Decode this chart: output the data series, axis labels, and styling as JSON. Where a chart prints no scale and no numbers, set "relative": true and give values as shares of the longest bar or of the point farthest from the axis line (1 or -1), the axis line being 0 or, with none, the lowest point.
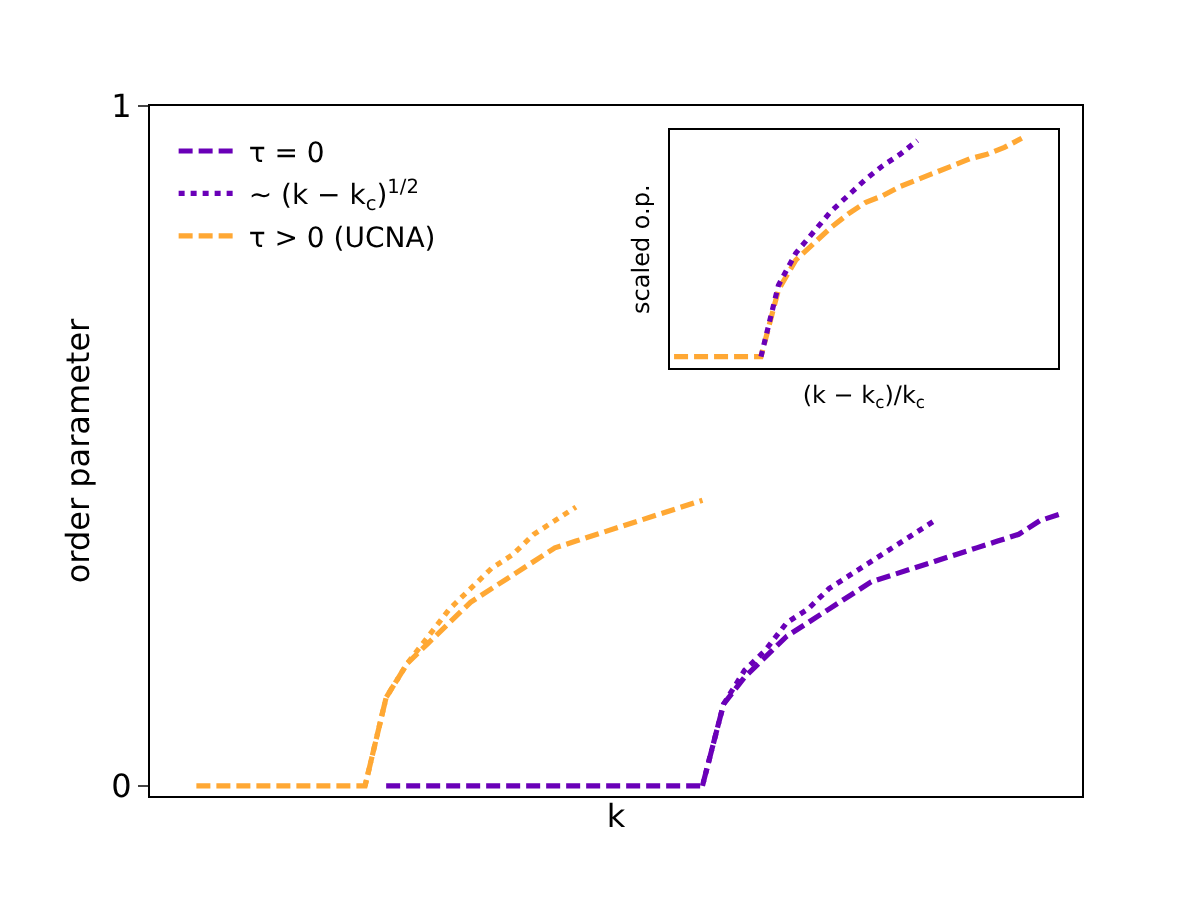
{
  "chart_data": [
    {
      "type": "line",
      "xlabel": "k",
      "ylabel": "order parameter",
      "categories": [
        null,
        null,
        null,
        null,
        null,
        null,
        null,
        null,
        null,
        null,
        null,
        null,
        null,
        null,
        null,
        null,
        null,
        null,
        null,
        null,
        null,
        null,
        null,
        null,
        null,
        null,
        null,
        null,
        null,
        null,
        null,
        null,
        null,
        null,
        null,
        null,
        null,
        null,
        null,
        null,
        null,
        null
      ],
      "series": [
        {
          "name": "τ = 0",
          "color": "#6a00b8",
          "line_style": "dashed",
          "values": [
            null,
            null,
            null,
            null,
            null,
            null,
            null,
            null,
            null,
            0,
            0,
            0,
            0,
            0,
            0,
            0,
            0,
            0,
            0,
            0,
            0,
            0,
            0,
            0,
            0,
            0.12,
            0.16,
            0.19,
            0.22,
            0.24,
            0.26,
            0.28,
            0.3,
            0.31,
            0.32,
            0.33,
            0.34,
            0.35,
            0.36,
            0.37,
            0.39,
            0.4
          ]
        },
        {
          "name": "~ (k − k$_{c}$)$^{1/2}$",
          "color": "#6a00b8",
          "line_style": "dotted",
          "values": [
            null,
            null,
            null,
            null,
            null,
            null,
            null,
            null,
            null,
            null,
            null,
            null,
            null,
            null,
            null,
            null,
            null,
            null,
            null,
            null,
            null,
            null,
            null,
            null,
            0,
            0.12,
            0.17,
            0.2,
            0.24,
            0.26,
            0.29,
            0.31,
            0.33,
            0.35,
            0.37,
            0.39,
            null,
            null,
            null,
            null,
            null,
            null
          ]
        },
        {
          "name": "τ > 0 (UCNA)",
          "color": "#ffa834",
          "line_style": "dashed",
          "values": [
            0,
            0,
            0,
            0,
            0,
            0,
            0,
            0,
            0,
            0.13,
            0.18,
            0.21,
            0.24,
            0.27,
            0.29,
            0.31,
            0.33,
            0.35,
            0.36,
            0.37,
            0.38,
            0.39,
            0.4,
            0.41,
            0.42,
            null,
            null,
            null,
            null,
            null,
            null,
            null,
            null,
            null,
            null,
            null,
            null,
            null,
            null,
            null,
            null,
            null
          ]
        },
        {
          "color": "#ffa834",
          "line_style": "dotted",
          "values": [
            null,
            null,
            null,
            null,
            null,
            null,
            null,
            null,
            0,
            0.13,
            0.18,
            0.22,
            0.26,
            0.29,
            0.32,
            0.34,
            0.37,
            0.39,
            0.41,
            null,
            null,
            null,
            null,
            null,
            null,
            null,
            null,
            null,
            null,
            null,
            null,
            null,
            null,
            null,
            null,
            null,
            null,
            null,
            null,
            null,
            null,
            null
          ]
        }
      ],
      "ylim": [
        -0.015,
        1
      ],
      "yticks": [
        0,
        1
      ],
      "tick_labels": "y",
      "legend": "top left"
    },
    {
      "type": "line",
      "relative": true,
      "xlabel": "(k − k$_{c}$)/k$_{c}$",
      "ylabel": "scaled o.p.",
      "categories": [
        null,
        null,
        null,
        null,
        null,
        null,
        null,
        null,
        null,
        null,
        null,
        null,
        null,
        null,
        null,
        null,
        null,
        null,
        null,
        null,
        null
      ],
      "series": [
        {
          "color": "#ffa834",
          "line_style": "dashed",
          "values": [
            0.05,
            0.05,
            0.05,
            0.05,
            0.05,
            0.05,
            0.34,
            0.47,
            0.54,
            0.61,
            0.67,
            0.72,
            0.75,
            0.79,
            0.82,
            0.85,
            0.88,
            0.91,
            0.93,
            0.96,
            1.0
          ]
        },
        {
          "color": "#6a00b8",
          "line_style": "dotted",
          "values": [
            null,
            null,
            null,
            null,
            null,
            0.05,
            0.36,
            0.5,
            0.59,
            0.68,
            0.75,
            0.82,
            0.88,
            0.93,
            0.99,
            null,
            null,
            null,
            null,
            null,
            null
          ]
        }
      ]
    }
  ]
}
